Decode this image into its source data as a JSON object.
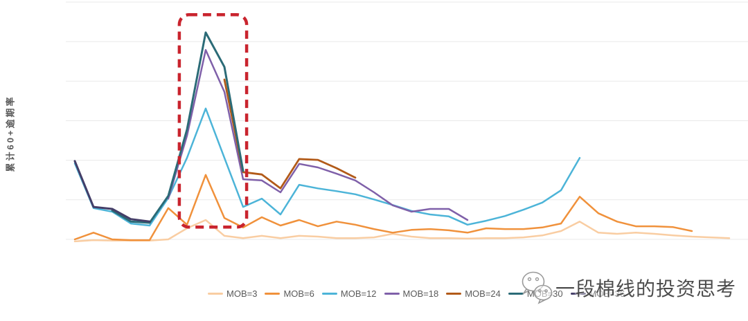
{
  "y_axis_label": "累计60+逾期率",
  "watermark": {
    "text": "一段棉线的投资思考",
    "icon": "wechat-chat-bubbles-icon"
  },
  "chart_data": {
    "type": "line",
    "title": "",
    "xlabel": "",
    "ylabel": "累计60+逾期率",
    "x_tick_labels_visible": false,
    "y_tick_labels_visible": false,
    "grid": "horizontal-only",
    "grid_color": "#e9e9e9",
    "gridline_count": 7,
    "legend_position": "bottom-center",
    "value_unit_note": "axes unlabeled; values expressed in gridline-spacing units above bottom gridline",
    "ylim": [
      0,
      6
    ],
    "series": [
      {
        "name": "MOB=3",
        "color": "#f9cda2",
        "x": [
          0,
          1,
          2,
          3,
          4,
          5,
          6,
          7,
          8,
          9,
          10,
          11,
          12,
          13,
          14,
          15,
          16,
          17,
          18,
          19,
          20,
          21,
          22,
          23,
          24,
          25,
          26,
          27,
          28,
          29,
          30,
          31,
          32,
          33,
          34,
          35
        ],
        "v": [
          -0.05,
          -0.02,
          -0.03,
          -0.03,
          -0.03,
          0.0,
          0.28,
          0.49,
          0.09,
          0.03,
          0.09,
          0.03,
          0.09,
          0.07,
          0.03,
          0.03,
          0.05,
          0.14,
          0.07,
          0.03,
          0.03,
          0.02,
          0.03,
          0.03,
          0.05,
          0.1,
          0.21,
          0.45,
          0.17,
          0.14,
          0.17,
          0.14,
          0.1,
          0.07,
          0.05,
          0.03
        ]
      },
      {
        "name": "MOB=6",
        "color": "#f0913b",
        "x": [
          0,
          1,
          2,
          3,
          4,
          5,
          6,
          7,
          8,
          9,
          10,
          11,
          12,
          13,
          14,
          15,
          16,
          17,
          18,
          19,
          20,
          21,
          22,
          23,
          24,
          25,
          26,
          27,
          28,
          29,
          30,
          31,
          32,
          33
        ],
        "v": [
          0.0,
          0.17,
          0.0,
          -0.02,
          -0.02,
          0.79,
          0.37,
          1.63,
          0.54,
          0.3,
          0.56,
          0.35,
          0.49,
          0.33,
          0.45,
          0.37,
          0.26,
          0.17,
          0.24,
          0.26,
          0.23,
          0.17,
          0.28,
          0.26,
          0.26,
          0.3,
          0.4,
          1.08,
          0.66,
          0.45,
          0.33,
          0.33,
          0.31,
          0.21
        ]
      },
      {
        "name": "MOB=12",
        "color": "#4cb4d8",
        "x": [
          0,
          1,
          2,
          3,
          4,
          5,
          6,
          7,
          8,
          9,
          10,
          11,
          12,
          13,
          14,
          15,
          16,
          17,
          18,
          19,
          20,
          21,
          22,
          23,
          24,
          25,
          26,
          27
        ],
        "v": [
          1.92,
          0.79,
          0.7,
          0.4,
          0.35,
          1.05,
          2.06,
          3.31,
          2.06,
          0.82,
          1.03,
          0.63,
          1.38,
          1.29,
          1.22,
          1.14,
          1.01,
          0.87,
          0.72,
          0.63,
          0.58,
          0.37,
          0.47,
          0.59,
          0.75,
          0.93,
          1.24,
          2.06
        ]
      },
      {
        "name": "MOB=18",
        "color": "#7f60a9",
        "x": [
          5,
          6,
          7,
          8,
          9,
          10,
          11,
          12,
          13,
          14,
          15,
          16,
          17,
          18,
          19,
          20,
          21
        ],
        "v": [
          1.03,
          2.62,
          4.79,
          3.73,
          1.52,
          1.49,
          1.19,
          1.91,
          1.82,
          1.66,
          1.49,
          1.19,
          0.86,
          0.7,
          0.77,
          0.77,
          0.49
        ]
      },
      {
        "name": "MOB=24",
        "color": "#b25a18",
        "x": [
          8,
          9,
          10,
          11,
          12,
          13,
          14,
          15
        ],
        "v": [
          4.04,
          1.7,
          1.64,
          1.29,
          2.03,
          2.01,
          1.8,
          1.56
        ]
      },
      {
        "name": "MOB=30",
        "color": "#2b6b77",
        "x": [
          2,
          3,
          4,
          5,
          6,
          7,
          8,
          9
        ],
        "v": [
          0.73,
          0.45,
          0.42,
          1.1,
          2.78,
          5.23,
          4.36,
          1.73
        ]
      },
      {
        "name": "MOB=36",
        "color": "#443e68",
        "x": [
          0,
          1,
          2,
          3,
          4
        ],
        "v": [
          1.98,
          0.82,
          0.77,
          0.51,
          0.45
        ]
      }
    ],
    "highlight_box": {
      "shape": "dashed-rounded-rectangle",
      "color": "#c9242e",
      "x_index_start": 5.59,
      "x_index_end": 9.19,
      "v_top": 5.68,
      "v_bottom": 0.31
    }
  }
}
